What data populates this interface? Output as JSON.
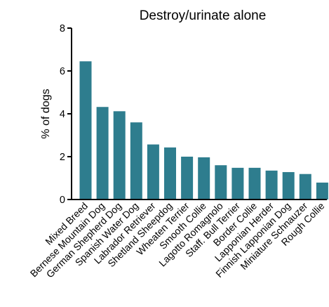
{
  "chart_data": {
    "type": "bar",
    "title": "Destroy/urinate alone",
    "xlabel": "",
    "ylabel": "% of dogs",
    "ylim": [
      0,
      8
    ],
    "yticks": [
      0,
      2,
      4,
      6,
      8
    ],
    "grid": false,
    "bar_color": "#2E7D8E",
    "categories": [
      "Mixed Breed",
      "Bernese Mountain Dog",
      "German Shepherd Dog",
      "Spanish Water Dog",
      "Labrador Retriever",
      "Shetland Sheepdog",
      "Wheaten Terrier",
      "Smooth Collie",
      "Lagotto Romagnolo",
      "Staff. Bull Terrier",
      "Border Collie",
      "Lapponian Herder",
      "Finnish Lapponian Dog",
      "Miniature Schnauzer",
      "Rough Collie"
    ],
    "values": [
      6.45,
      4.32,
      4.12,
      3.6,
      2.57,
      2.43,
      2.0,
      1.97,
      1.6,
      1.48,
      1.48,
      1.35,
      1.28,
      1.19,
      0.79
    ]
  }
}
